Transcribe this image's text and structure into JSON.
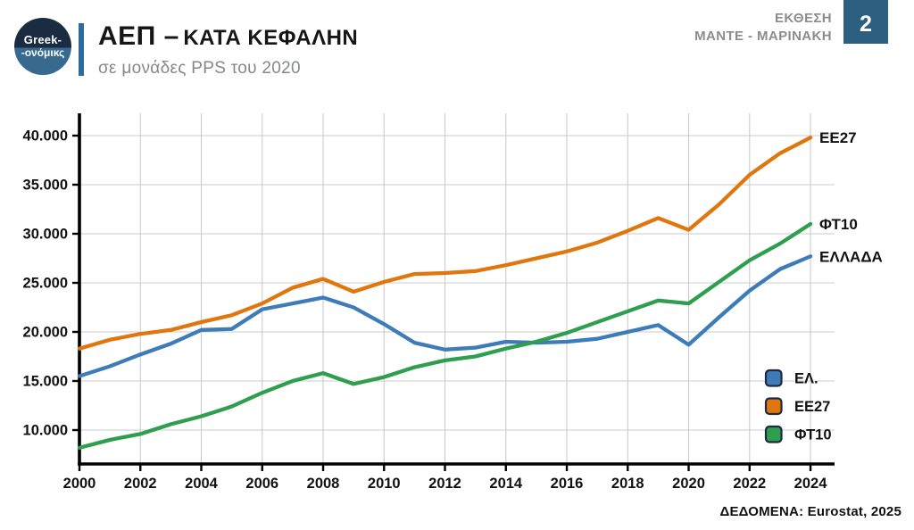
{
  "header": {
    "logo": {
      "line1": "Greek-",
      "line2": "-ονόμικς"
    },
    "title_prefix": "ΑΕΠ –",
    "title_rest": "ΚΑΤΑ ΚΕΦΑΛΗΝ",
    "subtitle": "σε μονάδες PPS του 2020",
    "report": {
      "line1": "ΕΚΘΕΣΗ",
      "line2": "ΜΑΝΤΕ - ΜΑΡΙΝΑΚΗ",
      "badge": "2"
    }
  },
  "footer": {
    "source": "ΔΕΔΟΜΕΝΑ: Eurostat, 2025"
  },
  "colors": {
    "greece_blue": "#3d7cb8",
    "eu_orange": "#e0760e",
    "ft10_green": "#2f9e4e",
    "badge_blue": "#2d5f80",
    "divider_blue": "#2d6b9b",
    "grid_gray": "#cbcbcb",
    "axis_black": "#000000"
  },
  "chart_data": {
    "type": "line",
    "title": "ΑΕΠ – ΚΑΤΑ ΚΕΦΑΛΗΝ",
    "subtitle": "σε μονάδες PPS του 2020",
    "xlabel": "",
    "ylabel": "",
    "grid": true,
    "legend_position": "lower right",
    "ylim": [
      6500,
      42300
    ],
    "x": [
      2000,
      2001,
      2002,
      2003,
      2004,
      2005,
      2006,
      2007,
      2008,
      2009,
      2010,
      2011,
      2012,
      2013,
      2014,
      2015,
      2016,
      2017,
      2018,
      2019,
      2020,
      2021,
      2022,
      2023,
      2024
    ],
    "series": [
      {
        "name": "ΕΛΛΑΔΑ",
        "legend_label": "ΕΛ.",
        "end_label": "ΕΛΛΑΔΑ",
        "color": "#3d7cb8",
        "values": [
          15500,
          16500,
          17700,
          18800,
          20200,
          20300,
          22300,
          22900,
          23500,
          22500,
          20800,
          18900,
          18200,
          18400,
          19000,
          18900,
          19000,
          19300,
          20000,
          20700,
          18700,
          21500,
          24200,
          26400,
          27700
        ]
      },
      {
        "name": "EE27",
        "legend_label": "EE27",
        "end_label": "EE27",
        "color": "#e0760e",
        "values": [
          18300,
          19200,
          19800,
          20200,
          21000,
          21700,
          22900,
          24500,
          25400,
          24100,
          25100,
          25900,
          26000,
          26200,
          26800,
          27500,
          28200,
          29100,
          30300,
          31600,
          30400,
          33000,
          36000,
          38200,
          39800
        ]
      },
      {
        "name": "ΦΤ10",
        "legend_label": "ΦΤ10",
        "end_label": "ΦΤ10",
        "color": "#2f9e4e",
        "values": [
          8200,
          9000,
          9600,
          10600,
          11400,
          12400,
          13800,
          15000,
          15800,
          14700,
          15400,
          16400,
          17100,
          17500,
          18300,
          19000,
          19900,
          21000,
          22100,
          23200,
          22900,
          25100,
          27300,
          29000,
          31000
        ]
      }
    ],
    "yticks": {
      "values": [
        10000,
        15000,
        20000,
        25000,
        30000,
        35000,
        40000
      ],
      "labels": [
        "10.000",
        "15.000",
        "20.000",
        "25.000",
        "30.000",
        "35.000",
        "40.000"
      ]
    },
    "xticks": {
      "values": [
        2002,
        2004,
        2006,
        2008,
        2010,
        2012,
        2014,
        2016,
        2018,
        2020,
        2022,
        2024
      ],
      "labels": [
        "2002",
        "2004",
        "2006",
        "2008",
        "2010",
        "2012",
        "2014",
        "2016",
        "2018",
        "2020",
        "2022",
        "2024"
      ],
      "first_value": 2000,
      "first_label": "2000"
    }
  }
}
